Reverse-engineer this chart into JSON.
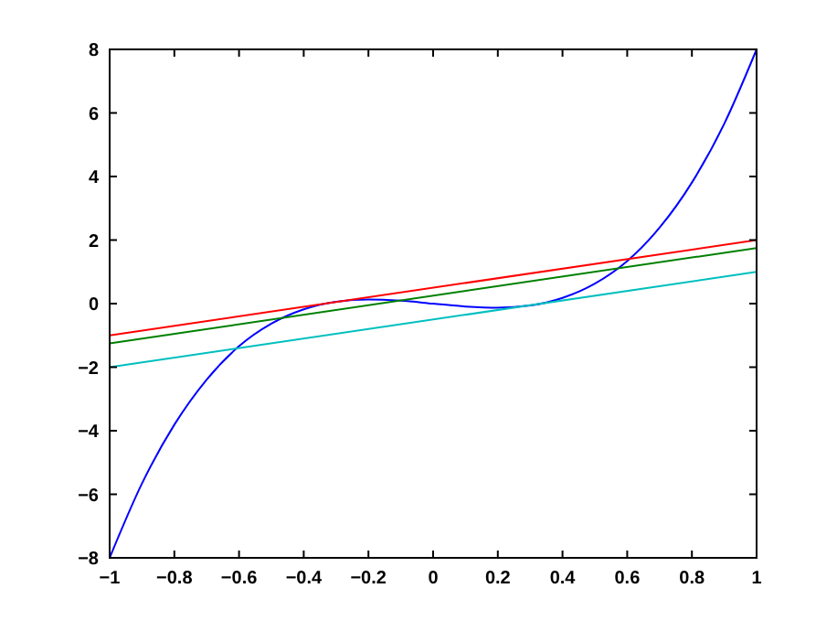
{
  "chart_data": {
    "type": "line",
    "xlim": [
      -1,
      1
    ],
    "ylim": [
      -8,
      8
    ],
    "xticks": [
      -1,
      -0.8,
      -0.6,
      -0.4,
      -0.2,
      0,
      0.2,
      0.4,
      0.6,
      0.8,
      1
    ],
    "yticks": [
      -8,
      -6,
      -4,
      -2,
      0,
      2,
      4,
      6,
      8
    ],
    "grid": false,
    "marker": "none",
    "line_style": "solid",
    "series": [
      {
        "color": "#0000ff",
        "x": [
          -1,
          -0.9,
          -0.8,
          -0.7,
          -0.6,
          -0.5,
          -0.4,
          -0.3,
          -0.2,
          -0.1,
          0,
          0.1,
          0.2,
          0.3,
          0.4,
          0.5,
          0.6,
          0.7,
          0.8,
          0.9,
          1
        ],
        "values": [
          -8,
          -5.66,
          -3.81,
          -2.39,
          -1.34,
          -0.63,
          -0.18,
          0.06,
          0.13,
          0.09,
          0,
          -0.09,
          -0.13,
          -0.06,
          0.18,
          0.63,
          1.34,
          2.39,
          3.81,
          5.66,
          8
        ]
      },
      {
        "color": "#ff0000",
        "x": [
          -1,
          1
        ],
        "values": [
          -1,
          2
        ]
      },
      {
        "color": "#008000",
        "x": [
          -1,
          1
        ],
        "values": [
          -1.25,
          1.75
        ]
      },
      {
        "color": "#00bfbf",
        "x": [
          -1,
          1
        ],
        "values": [
          -2,
          1
        ]
      }
    ]
  }
}
